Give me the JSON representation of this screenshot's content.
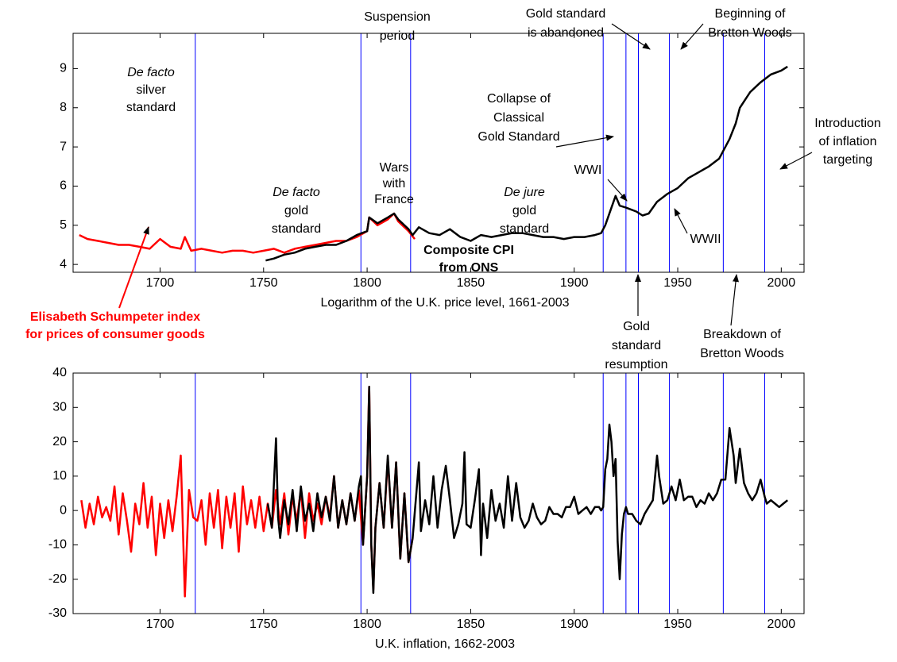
{
  "chart_data": [
    {
      "type": "line",
      "xlabel": "Logarithm of the U.K. price level, 1661-2003",
      "xlim": [
        1658,
        2011
      ],
      "xticks": [
        1700,
        1750,
        1800,
        1850,
        1900,
        1950,
        2000
      ],
      "ylim": [
        3.8,
        9.9
      ],
      "yticks": [
        4,
        5,
        6,
        7,
        8,
        9
      ],
      "vlines": [
        1717,
        1797,
        1821,
        1914,
        1925,
        1931,
        1946,
        1972,
        1992
      ],
      "vline_color": "#0000ff",
      "series": [
        {
          "color": "#ff0000",
          "x": [
            1661,
            1665,
            1670,
            1675,
            1680,
            1685,
            1690,
            1695,
            1700,
            1705,
            1710,
            1712,
            1715,
            1720,
            1725,
            1730,
            1735,
            1740,
            1745,
            1750,
            1755,
            1760,
            1765,
            1770,
            1775,
            1780,
            1785,
            1790,
            1795,
            1800,
            1801,
            1805,
            1810,
            1813,
            1815,
            1820,
            1823
          ],
          "values": [
            4.75,
            4.65,
            4.6,
            4.55,
            4.5,
            4.5,
            4.45,
            4.4,
            4.65,
            4.45,
            4.4,
            4.7,
            4.35,
            4.4,
            4.35,
            4.3,
            4.35,
            4.35,
            4.3,
            4.35,
            4.4,
            4.3,
            4.4,
            4.45,
            4.5,
            4.55,
            4.6,
            4.6,
            4.7,
            4.85,
            5.2,
            5.0,
            5.15,
            5.3,
            5.1,
            4.85,
            4.65
          ]
        },
        {
          "color": "#000000",
          "x": [
            1751,
            1755,
            1760,
            1765,
            1770,
            1775,
            1780,
            1785,
            1790,
            1795,
            1800,
            1801,
            1805,
            1810,
            1813,
            1815,
            1820,
            1822,
            1825,
            1830,
            1835,
            1840,
            1845,
            1850,
            1855,
            1860,
            1865,
            1870,
            1875,
            1880,
            1885,
            1890,
            1895,
            1900,
            1905,
            1910,
            1913,
            1915,
            1918,
            1920,
            1922,
            1925,
            1930,
            1933,
            1936,
            1940,
            1945,
            1950,
            1955,
            1960,
            1965,
            1970,
            1975,
            1978,
            1980,
            1985,
            1990,
            1995,
            2000,
            2003
          ],
          "values": [
            4.1,
            4.15,
            4.25,
            4.3,
            4.4,
            4.45,
            4.5,
            4.5,
            4.6,
            4.75,
            4.85,
            5.2,
            5.05,
            5.2,
            5.3,
            5.15,
            4.9,
            4.75,
            4.95,
            4.8,
            4.75,
            4.9,
            4.7,
            4.6,
            4.75,
            4.7,
            4.75,
            4.8,
            4.8,
            4.75,
            4.7,
            4.7,
            4.65,
            4.7,
            4.7,
            4.75,
            4.8,
            5.0,
            5.45,
            5.75,
            5.5,
            5.45,
            5.35,
            5.25,
            5.3,
            5.6,
            5.8,
            5.95,
            6.2,
            6.35,
            6.5,
            6.7,
            7.2,
            7.6,
            8.0,
            8.4,
            8.65,
            8.85,
            8.95,
            9.05
          ]
        }
      ],
      "annotations": [
        [
          "De facto",
          "silver",
          "standard"
        ],
        [
          "De facto",
          "gold",
          "standard"
        ],
        [
          "Suspension",
          "period"
        ],
        [
          "Wars",
          "with",
          "France"
        ],
        [
          "De jure",
          "gold",
          "standard"
        ],
        [
          "Composite CPI",
          "from ONS"
        ],
        [
          "Gold standard",
          "is abandoned"
        ],
        [
          "Beginning of",
          "Bretton Woods"
        ],
        [
          "Collapse of",
          "Classical",
          "Gold Standard"
        ],
        [
          "Introduction",
          "of inflation",
          "targeting"
        ],
        [
          "WWI"
        ],
        [
          "WWII"
        ],
        [
          "Gold",
          "standard",
          "resumption"
        ],
        [
          "Breakdown of",
          "Bretton Woods"
        ],
        [
          "Elisabeth Schumpeter index",
          "for prices of consumer goods"
        ]
      ]
    },
    {
      "type": "line",
      "xlabel": "U.K. inflation, 1662-2003",
      "xlim": [
        1658,
        2011
      ],
      "xticks": [
        1700,
        1750,
        1800,
        1850,
        1900,
        1950,
        2000
      ],
      "ylim": [
        -30,
        40
      ],
      "yticks": [
        -30,
        -20,
        -10,
        0,
        10,
        20,
        30,
        40
      ],
      "vlines": [
        1717,
        1797,
        1821,
        1914,
        1925,
        1931,
        1946,
        1972,
        1992
      ],
      "vline_color": "#0000ff",
      "series": [
        {
          "color": "#ff0000",
          "x": [
            1662,
            1664,
            1666,
            1668,
            1670,
            1672,
            1674,
            1676,
            1678,
            1680,
            1682,
            1684,
            1686,
            1688,
            1690,
            1692,
            1694,
            1696,
            1698,
            1700,
            1702,
            1704,
            1706,
            1708,
            1710,
            1712,
            1714,
            1716,
            1718,
            1720,
            1722,
            1724,
            1726,
            1728,
            1730,
            1732,
            1734,
            1736,
            1738,
            1740,
            1742,
            1744,
            1746,
            1748,
            1750,
            1752,
            1754,
            1756,
            1758,
            1760,
            1762,
            1764,
            1766,
            1768,
            1770,
            1772,
            1774,
            1776,
            1778,
            1780,
            1782,
            1784,
            1786,
            1788,
            1790,
            1792,
            1794,
            1796,
            1798,
            1800,
            1801,
            1802,
            1803,
            1804,
            1806,
            1808,
            1810,
            1812,
            1814,
            1816,
            1818,
            1820,
            1822
          ],
          "values": [
            3,
            -5,
            2,
            -4,
            4,
            -2,
            1,
            -3,
            7,
            -7,
            5,
            -3,
            -12,
            2,
            -4,
            8,
            -5,
            4,
            -13,
            2,
            -8,
            3,
            -6,
            4,
            16,
            -25,
            6,
            -2,
            -3,
            3,
            -10,
            5,
            -5,
            6,
            -11,
            4,
            -5,
            5,
            -12,
            7,
            -4,
            3,
            -5,
            4,
            -6,
            2,
            -5,
            6,
            -4,
            5,
            -7,
            4,
            -3,
            6,
            -8,
            5,
            -3,
            2,
            -4,
            4,
            -2,
            10,
            -5,
            3,
            -4,
            5,
            -3,
            6,
            -10,
            10,
            36,
            -10,
            -23,
            -5,
            8,
            -5,
            15,
            -5,
            14,
            -14,
            5,
            -15,
            -8
          ]
        },
        {
          "color": "#000000",
          "x": [
            1752,
            1754,
            1756,
            1757,
            1758,
            1760,
            1762,
            1764,
            1766,
            1768,
            1770,
            1772,
            1774,
            1776,
            1778,
            1780,
            1782,
            1784,
            1786,
            1788,
            1790,
            1792,
            1794,
            1796,
            1797,
            1798,
            1800,
            1801,
            1802,
            1803,
            1804,
            1806,
            1808,
            1810,
            1812,
            1814,
            1816,
            1818,
            1820,
            1822,
            1825,
            1826,
            1828,
            1830,
            1832,
            1834,
            1836,
            1838,
            1840,
            1842,
            1844,
            1846,
            1847,
            1848,
            1850,
            1852,
            1854,
            1855,
            1856,
            1858,
            1860,
            1862,
            1864,
            1866,
            1868,
            1870,
            1872,
            1874,
            1876,
            1878,
            1880,
            1882,
            1884,
            1886,
            1888,
            1890,
            1892,
            1894,
            1896,
            1898,
            1900,
            1902,
            1904,
            1906,
            1908,
            1910,
            1912,
            1913,
            1914,
            1915,
            1916,
            1917,
            1918,
            1919,
            1920,
            1921,
            1922,
            1923,
            1924,
            1925,
            1926,
            1928,
            1930,
            1932,
            1934,
            1936,
            1938,
            1940,
            1941,
            1943,
            1945,
            1947,
            1949,
            1951,
            1953,
            1955,
            1957,
            1959,
            1961,
            1963,
            1965,
            1967,
            1969,
            1971,
            1973,
            1975,
            1977,
            1978,
            1980,
            1982,
            1984,
            1986,
            1988,
            1990,
            1992,
            1993,
            1995,
            1997,
            1999,
            2001,
            2003
          ],
          "values": [
            2,
            -5,
            21,
            -2,
            -8,
            3,
            -4,
            6,
            -6,
            7,
            -3,
            2,
            -6,
            5,
            -2,
            4,
            -3,
            10,
            -5,
            3,
            -4,
            5,
            -3,
            7,
            10,
            -10,
            10,
            36,
            -10,
            -24,
            -5,
            8,
            -5,
            16,
            -5,
            14,
            -14,
            5,
            -15,
            -8,
            14,
            -6,
            3,
            -4,
            10,
            -5,
            6,
            13,
            3,
            -8,
            -4,
            2,
            17,
            -4,
            -5,
            3,
            12,
            -13,
            2,
            -8,
            6,
            -3,
            2,
            -5,
            10,
            -3,
            8,
            -2,
            -5,
            -3,
            2,
            -2,
            -4,
            -3,
            1,
            -1,
            -1,
            -2,
            1,
            1,
            4,
            -1,
            0,
            1,
            -1,
            1,
            1,
            0,
            1,
            12,
            15,
            25,
            20,
            10,
            15,
            -9,
            -20,
            -7,
            -1,
            1,
            -1,
            -1,
            -3,
            -4,
            -1,
            1,
            3,
            16,
            10,
            2,
            3,
            7,
            3,
            9,
            3,
            4,
            4,
            1,
            3,
            2,
            5,
            3,
            5,
            9,
            9,
            24,
            16,
            8,
            18,
            8,
            5,
            3,
            5,
            9,
            4,
            2,
            3,
            2,
            1,
            2,
            3
          ]
        }
      ]
    }
  ]
}
